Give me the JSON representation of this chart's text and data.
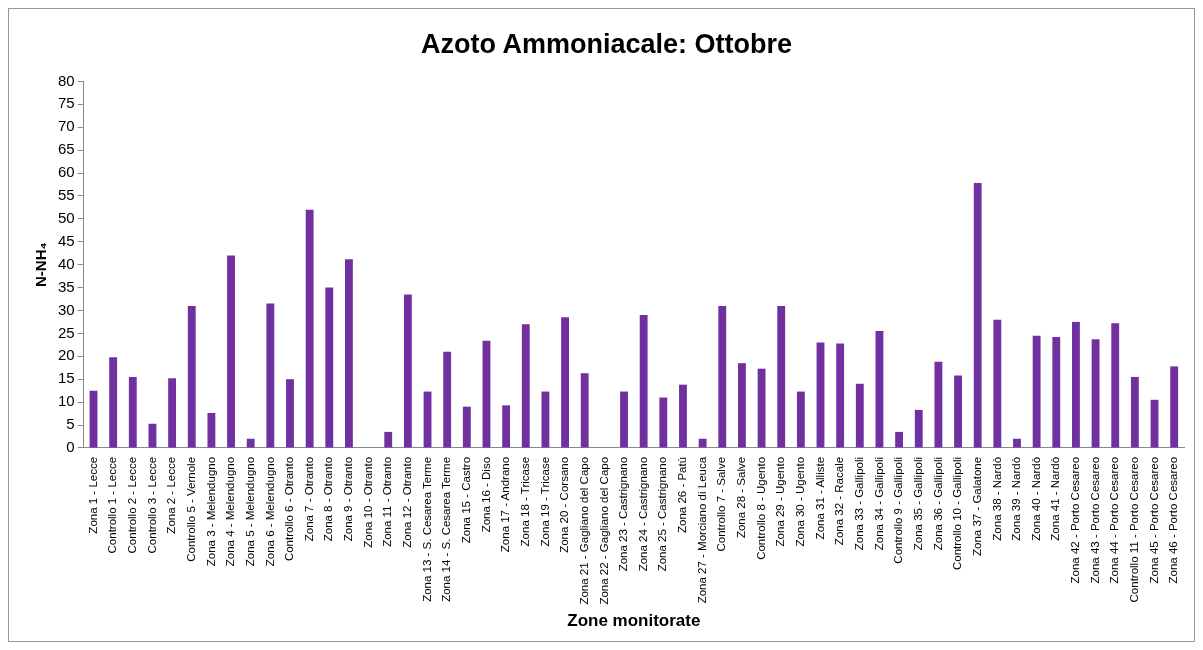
{
  "chart_data": {
    "type": "bar",
    "title": "Azoto Ammoniacale: Ottobre",
    "xlabel": "Zone monitorate",
    "ylabel": "N-NH₄",
    "categories": [
      "Zona 1 - Lecce",
      "Controllo 1 - Lecce",
      "Controllo 2 - Lecce",
      "Controllo 3 - Lecce",
      "Zona 2 - Lecce",
      "Controllo 5 - Vernole",
      "Zona 3 - Melendugno",
      "Zona 4 - Melendugno",
      "Zona 5 - Melendugno",
      "Zona 6 - Melendugno",
      "Controllo 6 - Otranto",
      "Zona 7 - Otranto",
      "Zona 8 - Otranto",
      "Zona 9 - Otranto",
      "Zona 10 - Otranto",
      "Zona 11 - Otranto",
      "Zona 12 - Otranto",
      "Zona 13 - S. Cesarea Terme",
      "Zona 14 - S. Cesarea Terme",
      "Zona 15 - Castro",
      "Zona 16 - Diso",
      "Zona 17 - Andrano",
      "Zona 18 - Tricase",
      "Zona 19 - Tricase",
      "Zona 20 - Corsano",
      "Zona 21 - Gagliano del Capo",
      "Zona 22 - Gagliano del Capo",
      "Zona 23 - Castrignano",
      "Zona 24 - Castrignano",
      "Zona 25 - Castrignano",
      "Zona 26 - Patù",
      "Zona 27 - Morciano di Leuca",
      "Controllo 7 - Salve",
      "Zona 28 - Salve",
      "Controllo 8 - Ugento",
      "Zona 29 - Ugento",
      "Zona 30 - Ugento",
      "Zona 31 - Alliste",
      "Zona 32 - Racale",
      "Zona 33 - Gallipoli",
      "Zona 34 - Gallipoli",
      "Controllo 9 - Gallipoli",
      "Zona 35 - Gallipoli",
      "Zona 36 - Gallipoli",
      "Controllo 10 - Gallipoli",
      "Zona 37 - Galatone",
      "Zona 38 - Nardò",
      "Zona 39 - Nardò",
      "Zona 40 - Nardò",
      "Zona 41 - Nardò",
      "Zona 42 - Porto Cesareo",
      "Zona 43 - Porto Cesareo",
      "Zona 44 - Porto Cesareo",
      "Controllo 11 - Porto Cesareo",
      "Zona 45 - Porto Cesareo",
      "Zona 46 - Porto Cesareo"
    ],
    "values": [
      12.5,
      19.8,
      15.5,
      5.3,
      15.2,
      31,
      7.6,
      42,
      2,
      31.5,
      15,
      52,
      35,
      41.2,
      0,
      3.5,
      33.5,
      12.3,
      21,
      9,
      23.4,
      9.3,
      27,
      12.3,
      28.5,
      16.3,
      0,
      12.3,
      29,
      11,
      13.8,
      2,
      31,
      18.5,
      17.3,
      31,
      12.3,
      23,
      22.8,
      14,
      25.5,
      3.5,
      8.3,
      18.8,
      15.8,
      57.8,
      28,
      2,
      24.5,
      24.2,
      27.5,
      23.7,
      27.2,
      15.5,
      10.5,
      17.8
    ],
    "color": "#7030a0",
    "ylim": [
      0,
      80
    ],
    "yticks": [
      0,
      5,
      10,
      15,
      20,
      25,
      30,
      35,
      40,
      45,
      50,
      55,
      60,
      65,
      70,
      75,
      80
    ],
    "grid": false,
    "legend": false
  }
}
